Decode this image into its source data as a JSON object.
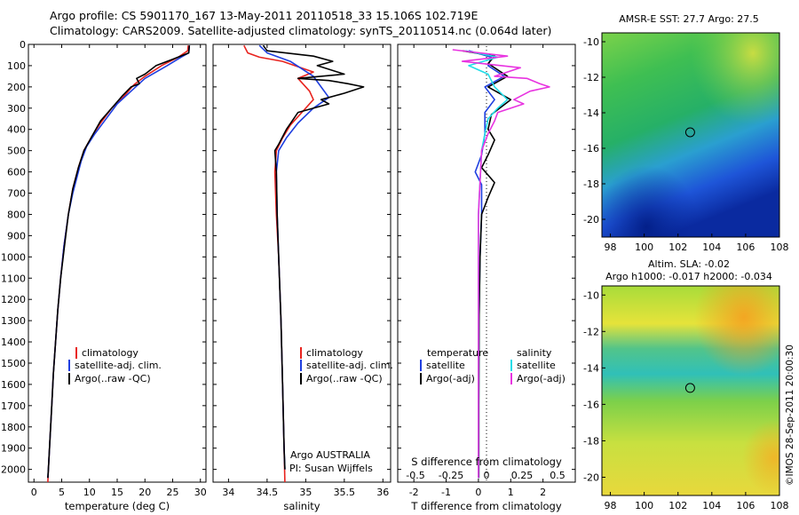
{
  "header": {
    "title_line1": "Argo profile: CS 5901170_167 13-May-2011 20110518_33 15.106S 102.719E",
    "title_line2": "Climatology: CARS2009. Satellite-adjusted climatology: synTS_20110514.nc (0.064d later)"
  },
  "colors": {
    "climatology": "#e8231e",
    "satellite": "#1f3fe0",
    "argo": "#000000",
    "salinity_satellite": "#22dde8",
    "salinity_argo": "#e833e0"
  },
  "chart_data": [
    {
      "type": "line",
      "id": "temperature",
      "xlabel": "temperature (deg C)",
      "xlim": [
        -1,
        31
      ],
      "ylim": [
        0,
        2060
      ],
      "xticks": [
        0,
        5,
        10,
        15,
        20,
        25,
        30
      ],
      "yticks": [
        0,
        100,
        200,
        300,
        400,
        500,
        600,
        700,
        800,
        900,
        1000,
        1100,
        1200,
        1300,
        1400,
        1500,
        1600,
        1700,
        1800,
        1900,
        2000
      ],
      "legend": [
        "climatology",
        "satellite-adj. clim.",
        "Argo(..raw -QC)"
      ],
      "legend_position": "lower-center",
      "series": [
        {
          "name": "climatology",
          "color": "#e8231e",
          "points": [
            [
              27.8,
              5
            ],
            [
              27.7,
              30
            ],
            [
              26,
              60
            ],
            [
              23,
              100
            ],
            [
              20,
              150
            ],
            [
              18,
              190
            ],
            [
              16,
              250
            ],
            [
              14,
              300
            ],
            [
              12,
              370
            ],
            [
              10.5,
              430
            ],
            [
              9,
              500
            ],
            [
              8,
              580
            ],
            [
              7,
              680
            ],
            [
              6.2,
              800
            ],
            [
              5.4,
              950
            ],
            [
              4.8,
              1100
            ],
            [
              4.3,
              1250
            ],
            [
              3.9,
              1400
            ],
            [
              3.5,
              1550
            ],
            [
              3.2,
              1700
            ],
            [
              2.9,
              1850
            ],
            [
              2.6,
              2000
            ],
            [
              2.5,
              2060
            ]
          ]
        },
        {
          "name": "satellite-adj. clim.",
          "color": "#1f3fe0",
          "points": [
            [
              28,
              5
            ],
            [
              27.9,
              40
            ],
            [
              26.5,
              60
            ],
            [
              24,
              100
            ],
            [
              20,
              160
            ],
            [
              17.5,
              220
            ],
            [
              15,
              280
            ],
            [
              13,
              350
            ],
            [
              11,
              420
            ],
            [
              9.5,
              480
            ],
            [
              8.5,
              550
            ],
            [
              7.8,
              620
            ],
            [
              7,
              700
            ],
            [
              6.2,
              800
            ],
            [
              5.4,
              950
            ],
            [
              4.8,
              1100
            ],
            [
              4.3,
              1250
            ],
            [
              3.9,
              1400
            ],
            [
              3.5,
              1550
            ],
            [
              3.2,
              1700
            ],
            [
              2.9,
              1850
            ],
            [
              2.6,
              2000
            ],
            [
              2.5,
              2040
            ]
          ]
        },
        {
          "name": "Argo(..raw -QC)",
          "color": "#000000",
          "points": [
            [
              28,
              5
            ],
            [
              27.9,
              40
            ],
            [
              25,
              70
            ],
            [
              22,
              100
            ],
            [
              20,
              140
            ],
            [
              18.5,
              160
            ],
            [
              19,
              185
            ],
            [
              17.5,
              200
            ],
            [
              16,
              240
            ],
            [
              14,
              300
            ],
            [
              12,
              360
            ],
            [
              10.5,
              430
            ],
            [
              9,
              500
            ],
            [
              8,
              580
            ],
            [
              7,
              680
            ],
            [
              6.2,
              800
            ],
            [
              5.5,
              950
            ],
            [
              4.8,
              1100
            ],
            [
              4.3,
              1250
            ],
            [
              3.9,
              1400
            ],
            [
              3.5,
              1550
            ],
            [
              3.2,
              1700
            ],
            [
              2.9,
              1850
            ],
            [
              2.6,
              2000
            ],
            [
              2.5,
              2040
            ]
          ]
        }
      ]
    },
    {
      "type": "line",
      "id": "salinity",
      "xlabel": "salinity",
      "xlim": [
        33.8,
        36.1
      ],
      "ylim": [
        0,
        2060
      ],
      "xticks": [
        34,
        34.5,
        35,
        35.5,
        36
      ],
      "legend": [
        "climatology",
        "satellite-adj. clim.",
        "Argo(..raw -QC)"
      ],
      "legend_position": "lower-center",
      "annotations": [
        "Argo AUSTRALIA",
        "PI: Susan Wijffels"
      ],
      "series": [
        {
          "name": "climatology",
          "color": "#e8231e",
          "points": [
            [
              34.2,
              5
            ],
            [
              34.25,
              40
            ],
            [
              34.4,
              60
            ],
            [
              34.7,
              80
            ],
            [
              35.1,
              130
            ],
            [
              34.9,
              160
            ],
            [
              35.05,
              220
            ],
            [
              35.1,
              260
            ],
            [
              34.95,
              320
            ],
            [
              34.8,
              380
            ],
            [
              34.7,
              440
            ],
            [
              34.62,
              500
            ],
            [
              34.6,
              600
            ],
            [
              34.62,
              800
            ],
            [
              34.65,
              1000
            ],
            [
              34.68,
              1300
            ],
            [
              34.7,
              1600
            ],
            [
              34.72,
              1900
            ],
            [
              34.73,
              2060
            ]
          ]
        },
        {
          "name": "satellite-adj. clim.",
          "color": "#1f3fe0",
          "points": [
            [
              34.4,
              5
            ],
            [
              34.5,
              40
            ],
            [
              34.8,
              80
            ],
            [
              35.1,
              150
            ],
            [
              35.2,
              200
            ],
            [
              35.3,
              250
            ],
            [
              35.1,
              300
            ],
            [
              34.9,
              370
            ],
            [
              34.75,
              440
            ],
            [
              34.65,
              500
            ],
            [
              34.62,
              600
            ],
            [
              34.63,
              800
            ],
            [
              34.65,
              1000
            ],
            [
              34.68,
              1300
            ],
            [
              34.7,
              1600
            ],
            [
              34.72,
              1900
            ],
            [
              34.73,
              2000
            ]
          ]
        },
        {
          "name": "Argo(..raw -QC)",
          "color": "#000000",
          "points": [
            [
              34.45,
              5
            ],
            [
              34.5,
              30
            ],
            [
              35.1,
              55
            ],
            [
              35.35,
              80
            ],
            [
              35.15,
              100
            ],
            [
              35.5,
              140
            ],
            [
              34.9,
              160
            ],
            [
              35.3,
              170
            ],
            [
              35.55,
              185
            ],
            [
              35.75,
              200
            ],
            [
              35.5,
              230
            ],
            [
              35.2,
              260
            ],
            [
              35.3,
              280
            ],
            [
              34.9,
              320
            ],
            [
              34.75,
              400
            ],
            [
              34.65,
              470
            ],
            [
              34.6,
              500
            ],
            [
              34.62,
              600
            ],
            [
              34.63,
              800
            ],
            [
              34.65,
              1000
            ],
            [
              34.68,
              1300
            ],
            [
              34.7,
              1600
            ],
            [
              34.72,
              1900
            ],
            [
              34.73,
              2000
            ]
          ]
        }
      ]
    },
    {
      "type": "line",
      "id": "difference",
      "xlabel": "T difference from climatology",
      "x2label": "S difference from climatology",
      "xlim": [
        -2.5,
        3
      ],
      "ylim": [
        0,
        2060
      ],
      "xticks": [
        -2,
        -1,
        0,
        1,
        2
      ],
      "x2ticks": [
        "-0.5",
        "-0.25",
        "0",
        "0.25",
        "0.5"
      ],
      "legend_left_title": "temperature",
      "legend_right_title": "salinity",
      "legend": [
        "satellite",
        "Argo(-adj)",
        "satellite",
        "Argo(-adj)"
      ],
      "series": [
        {
          "name": "temperature satellite",
          "color": "#1f3fe0",
          "points": [
            [
              -0.3,
              30
            ],
            [
              0.4,
              60
            ],
            [
              0.3,
              100
            ],
            [
              0.8,
              150
            ],
            [
              0.2,
              200
            ],
            [
              0.5,
              260
            ],
            [
              0.2,
              320
            ],
            [
              0.2,
              420
            ],
            [
              0.1,
              520
            ],
            [
              -0.1,
              600
            ],
            [
              0.1,
              660
            ],
            [
              0.1,
              800
            ],
            [
              0.05,
              1000
            ],
            [
              0.02,
              1300
            ],
            [
              0.01,
              1700
            ],
            [
              0.01,
              2040
            ]
          ]
        },
        {
          "name": "temperature Argo(-adj)",
          "color": "#000000",
          "points": [
            [
              -0.5,
              30
            ],
            [
              0.5,
              55
            ],
            [
              0.3,
              90
            ],
            [
              0.9,
              150
            ],
            [
              0.3,
              200
            ],
            [
              1.0,
              260
            ],
            [
              0.4,
              330
            ],
            [
              0.3,
              400
            ],
            [
              0.5,
              450
            ],
            [
              0.3,
              520
            ],
            [
              0.1,
              580
            ],
            [
              0.5,
              650
            ],
            [
              0.3,
              720
            ],
            [
              0.1,
              800
            ],
            [
              0.05,
              1000
            ],
            [
              0.02,
              1300
            ],
            [
              0.01,
              1700
            ],
            [
              0.01,
              2040
            ]
          ]
        },
        {
          "name": "salinity satellite",
          "color": "#22dde8",
          "points": [
            [
              -0.4,
              30
            ],
            [
              0.6,
              60
            ],
            [
              -0.3,
              100
            ],
            [
              0.3,
              140
            ],
            [
              0.5,
              200
            ],
            [
              0.9,
              260
            ],
            [
              0.6,
              300
            ],
            [
              0.3,
              350
            ],
            [
              0.2,
              420
            ],
            [
              0.1,
              500
            ],
            [
              0,
              800
            ],
            [
              0,
              1300
            ],
            [
              0,
              2040
            ]
          ]
        },
        {
          "name": "salinity Argo(-adj)",
          "color": "#e833e0",
          "points": [
            [
              -0.8,
              25
            ],
            [
              0.9,
              55
            ],
            [
              -0.5,
              80
            ],
            [
              1.3,
              110
            ],
            [
              0.5,
              150
            ],
            [
              1.5,
              160
            ],
            [
              1.9,
              185
            ],
            [
              2.2,
              200
            ],
            [
              1.6,
              220
            ],
            [
              1.1,
              260
            ],
            [
              1.4,
              280
            ],
            [
              0.6,
              320
            ],
            [
              0.5,
              360
            ],
            [
              0.3,
              420
            ],
            [
              0.1,
              500
            ],
            [
              0,
              800
            ],
            [
              0,
              1300
            ],
            [
              0,
              2040
            ]
          ]
        }
      ]
    },
    {
      "type": "heatmap",
      "id": "sst_map",
      "title": "AMSR-E SST: 27.7 Argo: 27.5",
      "xlim": [
        97.5,
        108
      ],
      "ylim": [
        -21,
        -9.5
      ],
      "xticks": [
        98,
        100,
        102,
        104,
        106,
        108
      ],
      "yticks": [
        -10,
        -12,
        -14,
        -16,
        -18,
        -20
      ],
      "marker": {
        "lon": 102.72,
        "lat": -15.1
      }
    },
    {
      "type": "heatmap",
      "id": "sla_map",
      "title": "Altim. SLA: -0.02",
      "subtitle": "Argo h1000: -0.017 h2000: -0.034",
      "xlim": [
        97.5,
        108
      ],
      "ylim": [
        -21,
        -9.5
      ],
      "xticks": [
        98,
        100,
        102,
        104,
        106,
        108
      ],
      "yticks": [
        -10,
        -12,
        -14,
        -16,
        -18,
        -20
      ],
      "marker": {
        "lon": 102.72,
        "lat": -15.1
      }
    }
  ],
  "footer": {
    "credit": "©IMOS 28-Sep-2011 20:00:30"
  }
}
